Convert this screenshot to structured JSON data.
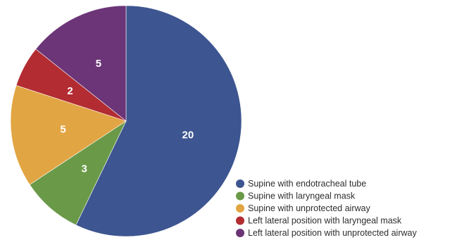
{
  "chart_data": {
    "type": "pie",
    "start": "top",
    "direction": "clockwise",
    "legend_position": "bottom-right",
    "slices": [
      {
        "label": "Supine with endotracheal tube",
        "value": 20,
        "value_label": "20",
        "color": "#3d5590"
      },
      {
        "label": "Supine with laryngeal mask",
        "value": 3,
        "value_label": "3",
        "color": "#6a9a48"
      },
      {
        "label": "Supine with unprotected airway",
        "value": 5,
        "value_label": "5",
        "color": "#e2a543"
      },
      {
        "label": "Left lateral position with laryngeal mask",
        "value": 2,
        "value_label": "2",
        "color": "#b22c32"
      },
      {
        "label": "Left lateral position with unprotected airway",
        "value": 5,
        "value_label": "5",
        "color": "#6b3577"
      }
    ]
  }
}
